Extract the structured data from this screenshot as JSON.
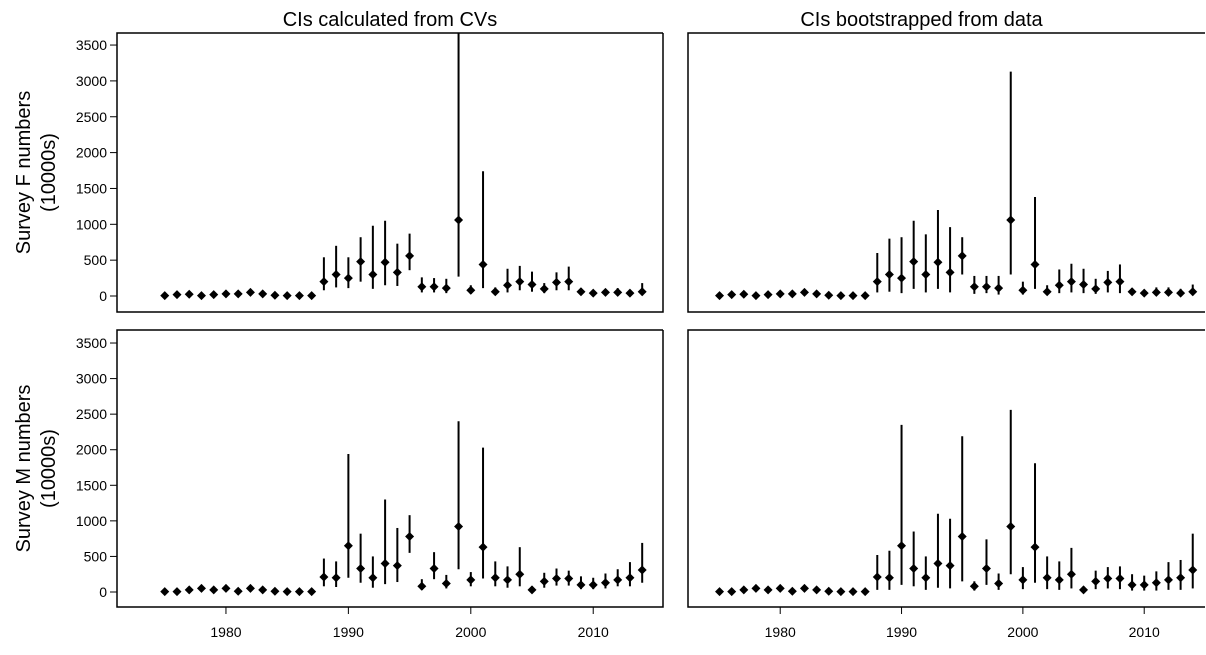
{
  "chart_data": [
    {
      "type": "errorbar",
      "title": "CIs calculated from CVs",
      "ylabel": [
        "Survey F numbers",
        "(10000s)"
      ],
      "x": [
        1975,
        1976,
        1977,
        1978,
        1979,
        1980,
        1981,
        1982,
        1983,
        1984,
        1985,
        1986,
        1987,
        1988,
        1989,
        1990,
        1991,
        1992,
        1993,
        1994,
        1995,
        1996,
        1997,
        1998,
        1999,
        2000,
        2001,
        2002,
        2003,
        2004,
        2005,
        2006,
        2007,
        2008,
        2009,
        2010,
        2011,
        2012,
        2013,
        2014
      ],
      "values": [
        5,
        20,
        25,
        5,
        20,
        30,
        30,
        50,
        30,
        10,
        5,
        5,
        5,
        200,
        300,
        250,
        480,
        300,
        470,
        330,
        560,
        130,
        130,
        110,
        1060,
        80,
        440,
        60,
        150,
        200,
        160,
        100,
        190,
        200,
        60,
        40,
        50,
        50,
        40,
        60
      ],
      "lower": [
        2,
        10,
        12,
        2,
        10,
        15,
        15,
        25,
        15,
        5,
        2,
        2,
        2,
        80,
        120,
        110,
        200,
        100,
        150,
        140,
        360,
        50,
        50,
        40,
        270,
        30,
        110,
        20,
        50,
        80,
        60,
        40,
        80,
        80,
        20,
        10,
        20,
        20,
        10,
        10
      ],
      "upper": [
        10,
        40,
        50,
        10,
        40,
        60,
        60,
        100,
        60,
        20,
        10,
        10,
        10,
        540,
        700,
        540,
        820,
        980,
        1050,
        730,
        870,
        260,
        250,
        240,
        3700,
        150,
        1740,
        120,
        380,
        420,
        340,
        180,
        330,
        410,
        110,
        80,
        100,
        110,
        90,
        180
      ],
      "color": "#000000",
      "xlim": [
        1971.1,
        2015.7
      ],
      "ylim": [
        -223,
        3668
      ],
      "yticks": [
        0,
        500,
        1000,
        1500,
        2000,
        2500,
        3000,
        3500
      ]
    },
    {
      "type": "errorbar",
      "title": "CIs bootstrapped from data",
      "x": [
        1975,
        1976,
        1977,
        1978,
        1979,
        1980,
        1981,
        1982,
        1983,
        1984,
        1985,
        1986,
        1987,
        1988,
        1989,
        1990,
        1991,
        1992,
        1993,
        1994,
        1995,
        1996,
        1997,
        1998,
        1999,
        2000,
        2001,
        2002,
        2003,
        2004,
        2005,
        2006,
        2007,
        2008,
        2009,
        2010,
        2011,
        2012,
        2013,
        2014
      ],
      "values": [
        5,
        20,
        25,
        5,
        20,
        30,
        30,
        50,
        30,
        10,
        5,
        5,
        5,
        200,
        300,
        250,
        480,
        300,
        470,
        330,
        560,
        130,
        130,
        110,
        1060,
        80,
        440,
        60,
        150,
        200,
        160,
        100,
        190,
        200,
        60,
        40,
        50,
        50,
        40,
        60
      ],
      "lower": [
        2,
        10,
        12,
        2,
        10,
        15,
        15,
        25,
        15,
        5,
        2,
        2,
        2,
        50,
        60,
        40,
        100,
        50,
        100,
        50,
        300,
        30,
        40,
        20,
        300,
        20,
        100,
        20,
        40,
        50,
        40,
        30,
        50,
        40,
        10,
        10,
        20,
        10,
        10,
        10
      ],
      "upper": [
        10,
        40,
        50,
        10,
        40,
        60,
        60,
        100,
        60,
        20,
        10,
        10,
        10,
        600,
        800,
        820,
        1050,
        860,
        1200,
        960,
        820,
        280,
        280,
        280,
        3130,
        200,
        1380,
        150,
        370,
        450,
        380,
        240,
        350,
        440,
        110,
        90,
        120,
        120,
        100,
        160
      ],
      "color": "#000000",
      "xlim": [
        1972.4,
        2017.4
      ],
      "ylim": [
        -223,
        3668
      ]
    },
    {
      "type": "errorbar",
      "ylabel": [
        "Survey M numbers",
        "(10000s)"
      ],
      "x": [
        1975,
        1976,
        1977,
        1978,
        1979,
        1980,
        1981,
        1982,
        1983,
        1984,
        1985,
        1986,
        1987,
        1988,
        1989,
        1990,
        1991,
        1992,
        1993,
        1994,
        1995,
        1996,
        1997,
        1998,
        1999,
        2000,
        2001,
        2002,
        2003,
        2004,
        2005,
        2006,
        2007,
        2008,
        2009,
        2010,
        2011,
        2012,
        2013,
        2014
      ],
      "values": [
        5,
        5,
        30,
        50,
        30,
        50,
        10,
        50,
        30,
        10,
        5,
        5,
        5,
        210,
        200,
        650,
        330,
        200,
        400,
        370,
        780,
        80,
        330,
        120,
        920,
        170,
        630,
        200,
        170,
        250,
        30,
        150,
        190,
        190,
        100,
        100,
        130,
        170,
        200,
        310
      ],
      "lower": [
        2,
        2,
        15,
        25,
        15,
        25,
        5,
        25,
        15,
        5,
        2,
        2,
        2,
        80,
        70,
        200,
        130,
        60,
        110,
        140,
        550,
        30,
        180,
        50,
        320,
        80,
        190,
        80,
        60,
        80,
        10,
        60,
        90,
        90,
        40,
        40,
        50,
        80,
        80,
        130
      ],
      "upper": [
        10,
        10,
        60,
        100,
        60,
        100,
        20,
        100,
        60,
        20,
        10,
        10,
        10,
        470,
        430,
        1940,
        820,
        500,
        1300,
        900,
        1080,
        180,
        560,
        240,
        2400,
        280,
        2030,
        430,
        360,
        630,
        80,
        270,
        330,
        300,
        220,
        200,
        260,
        320,
        420,
        690
      ],
      "color": "#000000",
      "xlim": [
        1971.1,
        2015.7
      ],
      "ylim": [
        -211,
        3683
      ],
      "yticks": [
        0,
        500,
        1000,
        1500,
        2000,
        2500,
        3000,
        3500
      ],
      "xticks": [
        1980,
        1990,
        2000,
        2010
      ]
    },
    {
      "type": "errorbar",
      "x": [
        1975,
        1976,
        1977,
        1978,
        1979,
        1980,
        1981,
        1982,
        1983,
        1984,
        1985,
        1986,
        1987,
        1988,
        1989,
        1990,
        1991,
        1992,
        1993,
        1994,
        1995,
        1996,
        1997,
        1998,
        1999,
        2000,
        2001,
        2002,
        2003,
        2004,
        2005,
        2006,
        2007,
        2008,
        2009,
        2010,
        2011,
        2012,
        2013,
        2014
      ],
      "values": [
        5,
        5,
        30,
        50,
        30,
        50,
        10,
        50,
        30,
        10,
        5,
        5,
        5,
        210,
        200,
        650,
        330,
        200,
        400,
        370,
        780,
        80,
        330,
        120,
        920,
        170,
        630,
        200,
        170,
        250,
        30,
        150,
        190,
        190,
        100,
        100,
        130,
        170,
        200,
        310
      ],
      "lower": [
        2,
        2,
        15,
        25,
        15,
        25,
        5,
        25,
        15,
        5,
        2,
        2,
        2,
        30,
        30,
        100,
        80,
        30,
        60,
        50,
        150,
        20,
        100,
        30,
        250,
        40,
        130,
        40,
        30,
        50,
        10,
        40,
        50,
        40,
        20,
        20,
        20,
        30,
        30,
        50
      ],
      "upper": [
        10,
        10,
        60,
        100,
        60,
        100,
        20,
        100,
        60,
        20,
        10,
        10,
        10,
        520,
        580,
        2350,
        850,
        500,
        1100,
        1030,
        2190,
        150,
        740,
        260,
        2560,
        350,
        1810,
        500,
        430,
        620,
        80,
        300,
        350,
        360,
        250,
        230,
        290,
        420,
        450,
        820
      ],
      "color": "#000000",
      "xlim": [
        1972.4,
        2017.4
      ],
      "ylim": [
        -211,
        3683
      ],
      "xticks": [
        1980,
        1990,
        2000,
        2010
      ]
    }
  ]
}
